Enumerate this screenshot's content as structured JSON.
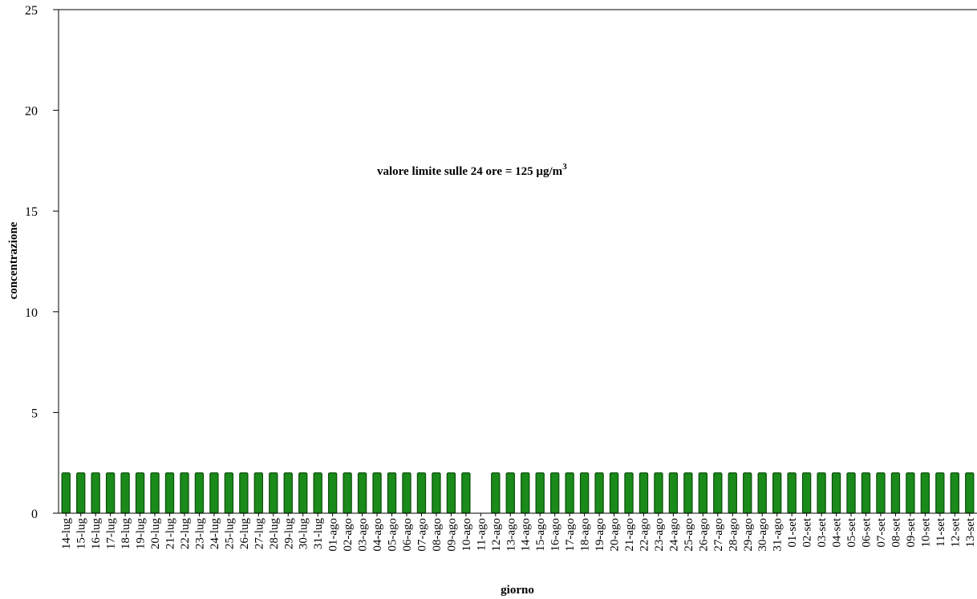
{
  "chart_data": {
    "type": "bar",
    "title": "",
    "xlabel": "giorno",
    "ylabel": "concentrazione",
    "ylim": [
      0,
      25
    ],
    "yticks": [
      "0",
      "5",
      "10",
      "15",
      "20",
      "25"
    ],
    "grid": false,
    "annotation": {
      "text": "valore limite sulle 24 ore = 125 µg/m",
      "superscript": "3"
    },
    "bar_color": "#1a8a1a",
    "bar_edge_color": "#0b4f0b",
    "categories": [
      "14-lug",
      "15-lug",
      "16-lug",
      "17-lug",
      "18-lug",
      "19-lug",
      "20-lug",
      "21-lug",
      "22-lug",
      "23-lug",
      "24-lug",
      "25-lug",
      "26-lug",
      "27-lug",
      "28-lug",
      "29-lug",
      "30-lug",
      "31-lug",
      "01-ago",
      "02-ago",
      "03-ago",
      "04-ago",
      "05-ago",
      "06-ago",
      "07-ago",
      "08-ago",
      "09-ago",
      "10-ago",
      "11-ago",
      "12-ago",
      "13-ago",
      "14-ago",
      "15-ago",
      "16-ago",
      "17-ago",
      "18-ago",
      "19-ago",
      "20-ago",
      "21-ago",
      "22-ago",
      "23-ago",
      "24-ago",
      "25-ago",
      "26-ago",
      "27-ago",
      "28-ago",
      "29-ago",
      "30-ago",
      "31-ago",
      "01-set",
      "02-set",
      "03-set",
      "04-set",
      "05-set",
      "06-set",
      "07-set",
      "08-set",
      "09-set",
      "10-set",
      "11-set",
      "12-set",
      "13-set"
    ],
    "values": [
      2,
      2,
      2,
      2,
      2,
      2,
      2,
      2,
      2,
      2,
      2,
      2,
      2,
      2,
      2,
      2,
      2,
      2,
      2,
      2,
      2,
      2,
      2,
      2,
      2,
      2,
      2,
      2,
      null,
      2,
      2,
      2,
      2,
      2,
      2,
      2,
      2,
      2,
      2,
      2,
      2,
      2,
      2,
      2,
      2,
      2,
      2,
      2,
      2,
      2,
      2,
      2,
      2,
      2,
      2,
      2,
      2,
      2,
      2,
      2,
      2,
      2
    ]
  }
}
